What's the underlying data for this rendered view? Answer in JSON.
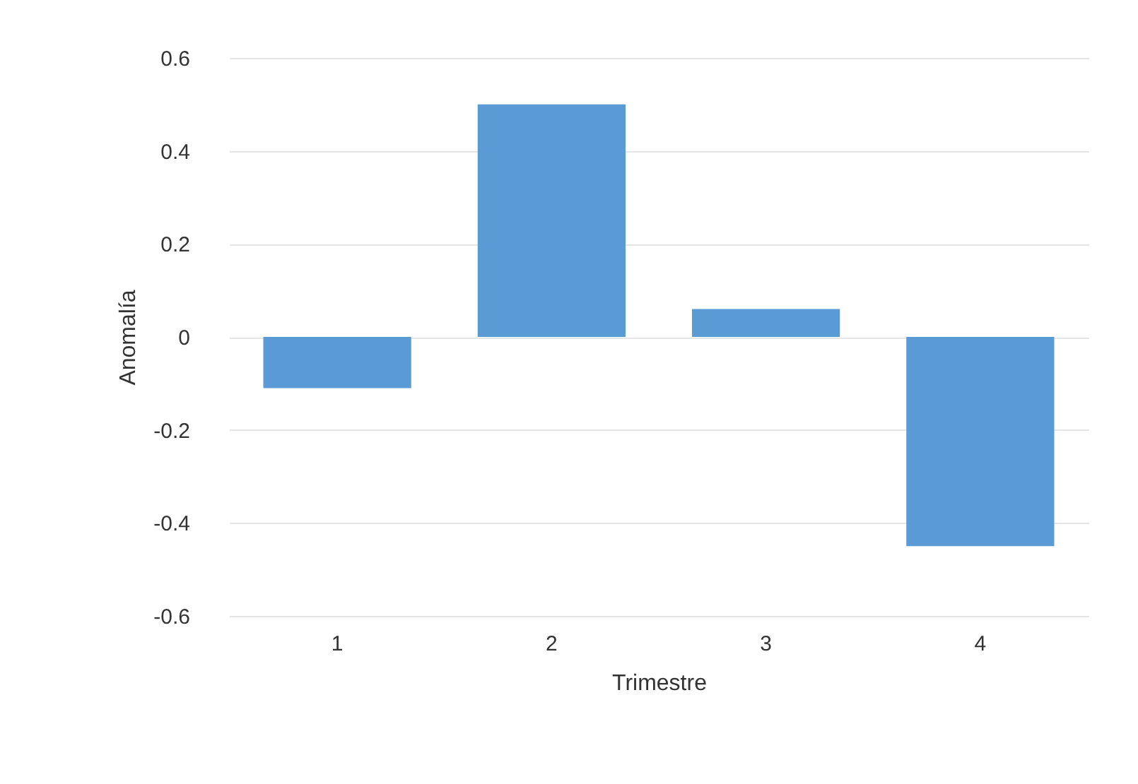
{
  "chart_data": {
    "type": "bar",
    "xlabel": "Trimestre",
    "ylabel": "Anomalía",
    "categories": [
      "1",
      "2",
      "3",
      "4"
    ],
    "values": [
      -0.11,
      0.5,
      0.06,
      -0.45
    ],
    "color": "#5b9bd5",
    "ylim": [
      -0.6,
      0.6
    ],
    "yticks": [
      -0.6,
      -0.4,
      -0.2,
      0,
      0.2,
      0.4,
      0.6
    ],
    "grid": "y"
  }
}
